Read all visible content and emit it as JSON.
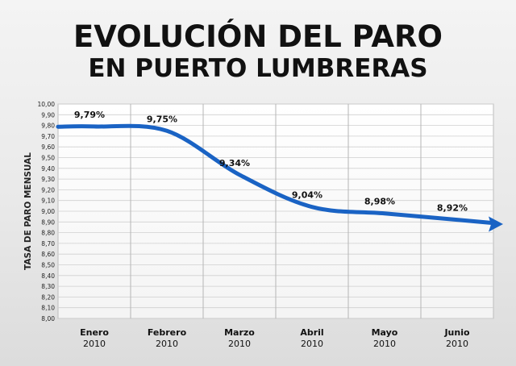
{
  "header": {
    "title": "EVOLUCIÓN DEL PARO",
    "subtitle": "EN PUERTO LUMBRERAS"
  },
  "chart_data": {
    "type": "line",
    "title": "EVOLUCIÓN DEL PARO EN PUERTO LUMBRERAS",
    "ylabel": "TASA DE PARO MENSUAL",
    "xlabel": "",
    "categories": [
      "Enero",
      "Febrero",
      "Marzo",
      "Abril",
      "Mayo",
      "Junio"
    ],
    "category_years": [
      "2010",
      "2010",
      "2010",
      "2010",
      "2010",
      "2010"
    ],
    "series": [
      {
        "values": [
          9.79,
          9.75,
          9.34,
          9.04,
          8.98,
          8.92
        ],
        "labels": [
          "9,79%",
          "9,75%",
          "9,34%",
          "9,04%",
          "8,98%",
          "8,92%"
        ]
      }
    ],
    "ylim": [
      8.0,
      10.0
    ],
    "ytick_step": 0.1,
    "ytick_labels": [
      "8,00",
      "8,10",
      "8,20",
      "8,30",
      "8,40",
      "8,50",
      "8,60",
      "8,70",
      "8,80",
      "8,90",
      "9,00",
      "9,10",
      "9,20",
      "9,30",
      "9,40",
      "9,50",
      "9,60",
      "9,70",
      "9,80",
      "9,90",
      "10,00"
    ],
    "grid": true,
    "line_color": "#1a63c4",
    "end_arrow": true
  }
}
